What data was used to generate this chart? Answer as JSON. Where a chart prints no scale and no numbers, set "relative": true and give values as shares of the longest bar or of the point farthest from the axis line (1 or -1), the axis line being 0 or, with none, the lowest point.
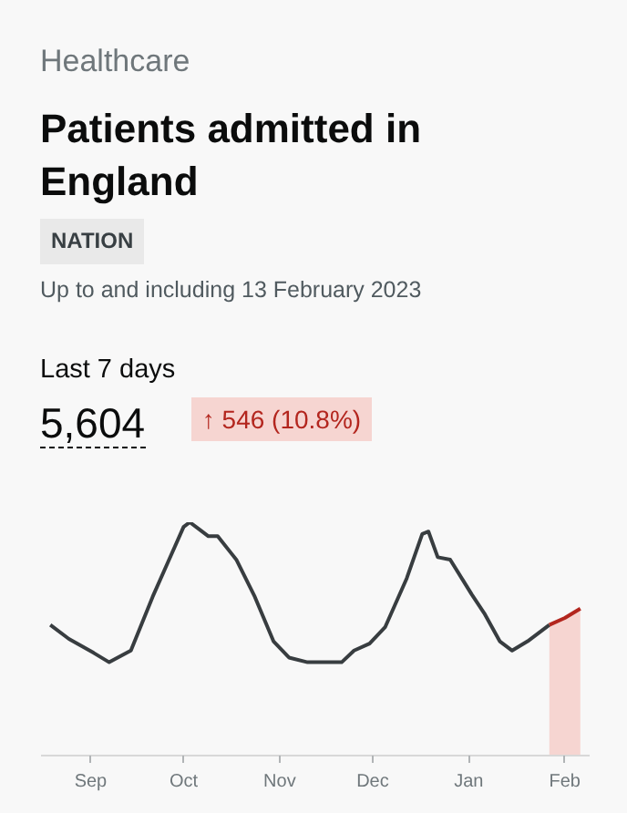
{
  "chart_data": {
    "type": "line",
    "title": "Patients admitted in England",
    "relative": true,
    "annotations": [
      "Healthcare",
      "NATION",
      "Up to and including 13 February 2023",
      "Last 7 days",
      "5,604",
      "↑ 546 (10.8%)"
    ],
    "x": [
      "2022-08-19",
      "2022-08-25",
      "2022-09-02",
      "2022-09-07",
      "2022-09-14",
      "2022-09-21",
      "2022-09-26",
      "2022-10-01",
      "2022-10-03",
      "2022-10-06",
      "2022-10-09",
      "2022-10-12",
      "2022-10-18",
      "2022-10-24",
      "2022-10-30",
      "2022-11-04",
      "2022-11-10",
      "2022-11-21",
      "2022-11-25",
      "2022-11-30",
      "2022-12-05",
      "2022-12-12",
      "2022-12-17",
      "2022-12-19",
      "2022-12-22",
      "2022-12-26",
      "2023-01-02",
      "2023-01-06",
      "2023-01-11",
      "2023-01-15",
      "2023-01-20",
      "2023-01-27"
    ],
    "series": [
      {
        "color": "#383d40",
        "values": [
          0.56,
          0.5,
          0.44,
          0.4,
          0.45,
          0.68,
          0.83,
          0.98,
          1.0,
          0.97,
          0.94,
          0.94,
          0.84,
          0.68,
          0.49,
          0.42,
          0.4,
          0.4,
          0.45,
          0.48,
          0.55,
          0.76,
          0.95,
          0.96,
          0.85,
          0.84,
          0.69,
          0.61,
          0.49,
          0.45,
          0.49,
          0.56
        ]
      },
      {
        "color": "#b3261e",
        "x": [
          "2023-01-27",
          "2023-02-01",
          "2023-02-06"
        ],
        "values": [
          0.56,
          0.59,
          0.63
        ]
      }
    ],
    "bands": [
      {
        "axis": "x",
        "from": "2023-01-27",
        "to": "2023-02-06",
        "color": "#f6d5d1"
      }
    ],
    "xlim": [
      "2022-08-16",
      "2023-02-09"
    ],
    "xticks": [
      {
        "value": "2022-09-01",
        "label": "Sep"
      },
      {
        "value": "2022-10-01",
        "label": "Oct"
      },
      {
        "value": "2022-11-01",
        "label": "Nov"
      },
      {
        "value": "2022-12-01",
        "label": "Dec"
      },
      {
        "value": "2023-01-01",
        "label": "Jan"
      },
      {
        "value": "2023-02-01",
        "label": "Feb"
      }
    ],
    "grid": false
  }
}
